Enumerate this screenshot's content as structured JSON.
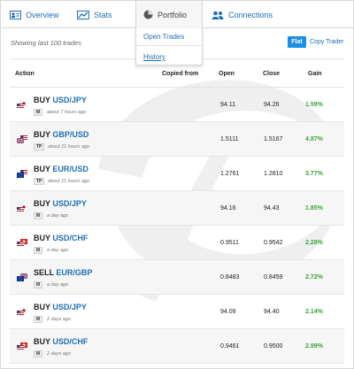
{
  "nav": {
    "overview": "Overview",
    "stats": "Stats",
    "portfolio": "Portfolio",
    "connections": "Connections"
  },
  "dropdown": {
    "open_trades": "Open Trades",
    "history": "History"
  },
  "toolbar": {
    "showing": "Showing last 100 trades",
    "flat": "Flat",
    "copy_trader": "Copy Trader"
  },
  "table": {
    "headers": {
      "action": "Action",
      "copied_from": "Copied from",
      "open": "Open",
      "close": "Close",
      "gain": "Gain"
    },
    "rows": [
      {
        "side": "BUY",
        "pair": "USD/JPY",
        "badge": "M",
        "ago": "about 7 hours ago",
        "open": "94.11",
        "close": "94.26",
        "gain": "1.59%",
        "flag": "us-jp"
      },
      {
        "side": "BUY",
        "pair": "GBP/USD",
        "badge": "TP",
        "ago": "about 11 hours ago",
        "open": "1.5111",
        "close": "1.5167",
        "gain": "4.87%",
        "flag": "gb-us"
      },
      {
        "side": "BUY",
        "pair": "EUR/USD",
        "badge": "TP",
        "ago": "about 11 hours ago",
        "open": "1.2761",
        "close": "1.2810",
        "gain": "3.77%",
        "flag": "eu-us"
      },
      {
        "side": "BUY",
        "pair": "USD/JPY",
        "badge": "M",
        "ago": "a day ago",
        "open": "94.16",
        "close": "94.43",
        "gain": "1.85%",
        "flag": "us-jp"
      },
      {
        "side": "BUY",
        "pair": "USD/CHF",
        "badge": "M",
        "ago": "a day ago",
        "open": "0.9511",
        "close": "0.9542",
        "gain": "2.28%",
        "flag": "us-ch"
      },
      {
        "side": "SELL",
        "pair": "EUR/GBP",
        "badge": "M",
        "ago": "a day ago",
        "open": "0.8483",
        "close": "0.8459",
        "gain": "2.72%",
        "flag": "eu-gb"
      },
      {
        "side": "BUY",
        "pair": "USD/JPY",
        "badge": "M",
        "ago": "2 days ago",
        "open": "94.09",
        "close": "94.40",
        "gain": "2.14%",
        "flag": "us-jp"
      },
      {
        "side": "BUY",
        "pair": "USD/CHF",
        "badge": "M",
        "ago": "2 days ago",
        "open": "0.9461",
        "close": "0.9500",
        "gain": "2.99%",
        "flag": "us-ch"
      }
    ]
  },
  "colors": {
    "accent": "#1e6fb8",
    "button": "#1a8fe3",
    "gain": "#3aa63a"
  },
  "icons": {
    "overview": "id-card-icon",
    "stats": "line-chart-icon",
    "portfolio": "pie-chart-icon",
    "connections": "users-icon"
  }
}
